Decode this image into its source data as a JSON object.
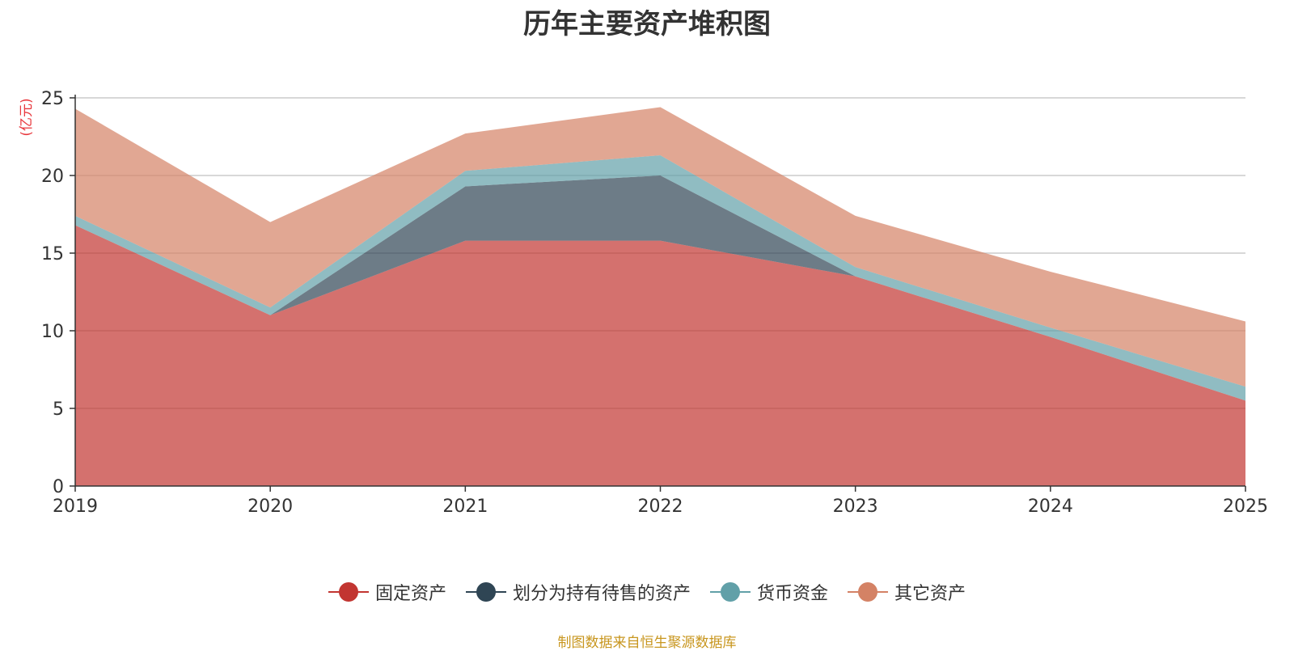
{
  "chart_data": {
    "type": "area",
    "stacked": true,
    "title": "历年主要资产堆积图",
    "ylabel": "(亿元)",
    "xlabel": "",
    "categories": [
      "2019",
      "2020",
      "2021",
      "2022",
      "2023",
      "2024",
      "2025"
    ],
    "ylim": [
      0,
      25
    ],
    "yticks": [
      0,
      5,
      10,
      15,
      20,
      25
    ],
    "series": [
      {
        "name": "固定资产",
        "color": "#c23531",
        "values": [
          16.8,
          11.0,
          15.8,
          15.8,
          13.5,
          9.6,
          5.5
        ]
      },
      {
        "name": "划分为持有待售的资产",
        "color": "#2f4554",
        "values": [
          0,
          0,
          3.5,
          4.2,
          0,
          0,
          0
        ]
      },
      {
        "name": "货币资金",
        "color": "#61a0a8",
        "values": [
          0.6,
          0.5,
          1.0,
          1.3,
          0.6,
          0.6,
          0.9
        ]
      },
      {
        "name": "其它资产",
        "color": "#d48265",
        "values": [
          6.9,
          5.5,
          2.4,
          3.1,
          3.3,
          3.6,
          4.2
        ]
      }
    ],
    "legend_position": "bottom-center",
    "grid": true,
    "source": "制图数据来自恒生聚源数据库"
  }
}
